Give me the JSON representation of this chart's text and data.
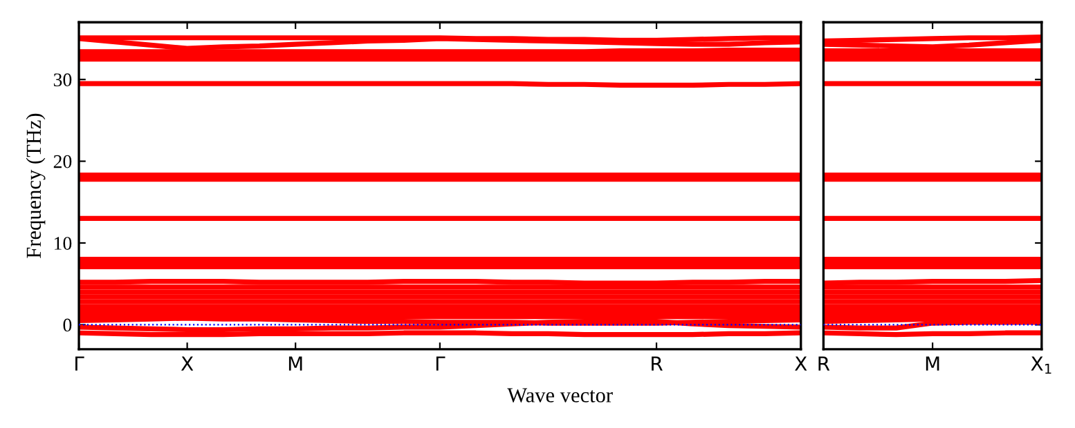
{
  "chart_data": [
    {
      "type": "line",
      "xlabel": "Wave vector",
      "ylabel": "Frequency (THz)",
      "legend": false,
      "grid": false,
      "marker": "none",
      "line_style": "solid",
      "categories": [
        "Γ",
        null,
        null,
        "X",
        null,
        null,
        "M",
        null,
        null,
        null,
        "Γ",
        null,
        null,
        null,
        null,
        null,
        "R",
        null,
        null,
        null,
        "X"
      ],
      "ylim": [
        -3,
        37
      ],
      "yticks": [
        0,
        10,
        20,
        30
      ],
      "ref_lines": [
        {
          "axis": "y",
          "value": 0,
          "color": "#0000ff",
          "line_style": "dotted"
        }
      ],
      "series": [
        {
          "color": "#ff0000",
          "values": [
            35.1,
            35.1,
            35.1,
            35.1,
            35.1,
            35.1,
            35.1,
            35.1,
            35.1,
            35.1,
            35.1,
            35.0,
            35.0,
            34.9,
            34.9,
            34.8,
            34.8,
            34.9,
            35.0,
            35.1,
            35.1
          ]
        },
        {
          "color": "#ff0000",
          "values": [
            35.0,
            34.6,
            34.2,
            33.8,
            34.0,
            34.1,
            34.3,
            34.5,
            34.7,
            34.8,
            35.0,
            34.9,
            34.8,
            34.7,
            34.6,
            34.5,
            34.4,
            34.3,
            34.3,
            34.5,
            34.6
          ]
        },
        {
          "color": "#ff0000",
          "values": [
            33.4,
            33.4,
            33.4,
            33.4,
            33.4,
            33.4,
            33.4,
            33.4,
            33.4,
            33.4,
            33.4,
            33.4,
            33.4,
            33.4,
            33.4,
            33.5,
            33.5,
            33.5,
            33.6,
            33.6,
            33.6
          ]
        },
        {
          "color": "#ff0000",
          "values": [
            33.0,
            33.0,
            33.0,
            33.0,
            33.0,
            33.0,
            33.0,
            33.0,
            33.0,
            33.0,
            33.0,
            33.0,
            33.0,
            33.0,
            33.0,
            33.0,
            33.0,
            33.0,
            33.0,
            33.0,
            33.0
          ]
        },
        {
          "color": "#ff0000",
          "values": [
            32.5,
            32.5,
            32.5,
            32.5,
            32.5,
            32.5,
            32.5,
            32.5,
            32.5,
            32.5,
            32.5,
            32.5,
            32.5,
            32.5,
            32.5,
            32.5,
            32.5,
            32.5,
            32.5,
            32.5,
            32.5
          ]
        },
        {
          "color": "#ff0000",
          "values": [
            29.5,
            29.5,
            29.5,
            29.5,
            29.5,
            29.5,
            29.5,
            29.5,
            29.5,
            29.5,
            29.5,
            29.5,
            29.5,
            29.4,
            29.4,
            29.3,
            29.3,
            29.3,
            29.4,
            29.4,
            29.5
          ]
        },
        {
          "color": "#ff0000",
          "values": [
            18.3,
            18.3,
            18.3,
            18.3,
            18.3,
            18.3,
            18.3,
            18.3,
            18.3,
            18.3,
            18.3,
            18.3,
            18.3,
            18.3,
            18.3,
            18.3,
            18.3,
            18.3,
            18.3,
            18.3,
            18.3
          ]
        },
        {
          "color": "#ff0000",
          "values": [
            17.8,
            17.8,
            17.8,
            17.8,
            17.8,
            17.8,
            17.8,
            17.8,
            17.8,
            17.8,
            17.8,
            17.8,
            17.8,
            17.8,
            17.8,
            17.8,
            17.8,
            17.8,
            17.8,
            17.8,
            17.8
          ]
        },
        {
          "color": "#ff0000",
          "values": [
            13.0,
            13.0,
            13.0,
            13.0,
            13.0,
            13.0,
            13.0,
            13.0,
            13.0,
            13.0,
            13.0,
            13.0,
            13.0,
            13.0,
            13.0,
            13.0,
            13.0,
            13.0,
            13.0,
            13.0,
            13.0
          ]
        },
        {
          "color": "#ff0000",
          "values": [
            8.0,
            8.0,
            8.0,
            8.0,
            8.0,
            8.0,
            8.0,
            8.0,
            8.0,
            8.0,
            8.0,
            8.0,
            8.0,
            8.0,
            8.0,
            8.0,
            8.0,
            8.0,
            8.0,
            8.0,
            8.0
          ]
        },
        {
          "color": "#ff0000",
          "values": [
            7.6,
            7.6,
            7.6,
            7.6,
            7.6,
            7.6,
            7.6,
            7.6,
            7.6,
            7.6,
            7.6,
            7.6,
            7.6,
            7.6,
            7.6,
            7.6,
            7.6,
            7.6,
            7.6,
            7.6,
            7.6
          ]
        },
        {
          "color": "#ff0000",
          "values": [
            7.1,
            7.1,
            7.1,
            7.1,
            7.1,
            7.1,
            7.1,
            7.1,
            7.1,
            7.1,
            7.1,
            7.1,
            7.1,
            7.1,
            7.1,
            7.1,
            7.1,
            7.1,
            7.1,
            7.1,
            7.1
          ]
        },
        {
          "color": "#ff0000",
          "values": [
            5.2,
            5.2,
            5.3,
            5.3,
            5.3,
            5.2,
            5.2,
            5.2,
            5.2,
            5.3,
            5.3,
            5.3,
            5.2,
            5.2,
            5.1,
            5.1,
            5.1,
            5.2,
            5.2,
            5.3,
            5.3
          ]
        },
        {
          "color": "#ff0000",
          "values": [
            4.6,
            4.6,
            4.6,
            4.6,
            4.6,
            4.6,
            4.6,
            4.6,
            4.6,
            4.6,
            4.6,
            4.6,
            4.6,
            4.6,
            4.6,
            4.6,
            4.6,
            4.6,
            4.6,
            4.6,
            4.6
          ]
        },
        {
          "color": "#ff0000",
          "values": [
            4.0,
            4.0,
            4.0,
            4.0,
            4.0,
            4.0,
            4.0,
            4.0,
            4.0,
            4.0,
            4.0,
            4.0,
            4.0,
            4.0,
            4.0,
            4.0,
            4.0,
            4.0,
            4.0,
            4.0,
            4.0
          ]
        },
        {
          "color": "#ff0000",
          "values": [
            3.4,
            3.4,
            3.4,
            3.4,
            3.4,
            3.4,
            3.4,
            3.4,
            3.4,
            3.4,
            3.4,
            3.4,
            3.4,
            3.4,
            3.4,
            3.4,
            3.4,
            3.4,
            3.4,
            3.4,
            3.4
          ]
        },
        {
          "color": "#ff0000",
          "values": [
            2.8,
            2.8,
            2.8,
            2.8,
            2.8,
            2.8,
            2.8,
            2.8,
            2.8,
            2.8,
            2.8,
            2.8,
            2.8,
            2.8,
            2.8,
            2.8,
            2.8,
            2.8,
            2.8,
            2.8,
            2.8
          ]
        },
        {
          "color": "#ff0000",
          "values": [
            2.2,
            2.2,
            2.2,
            2.2,
            2.2,
            2.2,
            2.2,
            2.2,
            2.2,
            2.2,
            2.2,
            2.2,
            2.2,
            2.2,
            2.2,
            2.2,
            2.2,
            2.2,
            2.2,
            2.2,
            2.2
          ]
        },
        {
          "color": "#ff0000",
          "values": [
            1.6,
            1.6,
            1.6,
            1.6,
            1.6,
            1.6,
            1.6,
            1.6,
            1.6,
            1.6,
            1.6,
            1.6,
            1.6,
            1.6,
            1.6,
            1.6,
            1.6,
            1.6,
            1.6,
            1.6,
            1.6
          ]
        },
        {
          "color": "#ff0000",
          "values": [
            1.0,
            1.0,
            1.0,
            1.0,
            1.0,
            1.0,
            1.0,
            1.0,
            1.0,
            1.0,
            1.0,
            1.0,
            1.0,
            1.0,
            1.0,
            1.0,
            1.0,
            1.0,
            1.0,
            1.0,
            1.0
          ]
        },
        {
          "color": "#ff0000",
          "values": [
            0.5,
            0.6,
            0.7,
            0.8,
            0.7,
            0.7,
            0.6,
            0.5,
            0.4,
            0.4,
            0.3,
            0.3,
            0.3,
            0.2,
            0.2,
            0.2,
            0.2,
            0.3,
            0.4,
            0.5,
            0.6
          ]
        },
        {
          "color": "#ff0000",
          "values": [
            -0.3,
            -0.4,
            -0.5,
            -0.6,
            -0.6,
            -0.5,
            -0.5,
            -0.4,
            -0.4,
            -0.3,
            -0.3,
            -0.1,
            0.1,
            0.3,
            0.4,
            0.4,
            0.4,
            0.1,
            -0.1,
            -0.2,
            -0.3
          ]
        },
        {
          "color": "#ff0000",
          "values": [
            -1.0,
            -1.1,
            -1.2,
            -1.2,
            -1.2,
            -1.1,
            -1.1,
            -1.1,
            -1.1,
            -1.0,
            -1.0,
            -1.0,
            -1.1,
            -1.1,
            -1.2,
            -1.2,
            -1.2,
            -1.2,
            -1.1,
            -1.1,
            -1.0
          ]
        }
      ]
    },
    {
      "type": "line",
      "legend": false,
      "grid": false,
      "marker": "none",
      "line_style": "solid",
      "tick_labels": "x",
      "categories": [
        "R",
        null,
        null,
        "M",
        null,
        null,
        "X$_{1}$"
      ],
      "ylim": [
        -3,
        37
      ],
      "yticks": [
        0,
        10,
        20,
        30
      ],
      "ref_lines": [
        {
          "axis": "y",
          "value": 0,
          "color": "#0000ff",
          "line_style": "dotted"
        }
      ],
      "series": [
        {
          "color": "#ff0000",
          "values": [
            34.7,
            34.8,
            34.9,
            35.0,
            35.1,
            35.1,
            35.2
          ]
        },
        {
          "color": "#ff0000",
          "values": [
            34.3,
            34.2,
            34.1,
            34.0,
            34.2,
            34.5,
            34.8
          ]
        },
        {
          "color": "#ff0000",
          "values": [
            33.5,
            33.5,
            33.5,
            33.5,
            33.5,
            33.5,
            33.5
          ]
        },
        {
          "color": "#ff0000",
          "values": [
            33.0,
            33.0,
            33.0,
            33.0,
            33.0,
            33.0,
            33.0
          ]
        },
        {
          "color": "#ff0000",
          "values": [
            32.5,
            32.5,
            32.5,
            32.5,
            32.5,
            32.5,
            32.5
          ]
        },
        {
          "color": "#ff0000",
          "values": [
            29.5,
            29.5,
            29.5,
            29.5,
            29.5,
            29.5,
            29.5
          ]
        },
        {
          "color": "#ff0000",
          "values": [
            18.3,
            18.3,
            18.3,
            18.3,
            18.3,
            18.3,
            18.3
          ]
        },
        {
          "color": "#ff0000",
          "values": [
            17.8,
            17.8,
            17.8,
            17.8,
            17.8,
            17.8,
            17.8
          ]
        },
        {
          "color": "#ff0000",
          "values": [
            13.0,
            13.0,
            13.0,
            13.0,
            13.0,
            13.0,
            13.0
          ]
        },
        {
          "color": "#ff0000",
          "values": [
            8.0,
            8.0,
            8.0,
            8.0,
            8.0,
            8.0,
            8.0
          ]
        },
        {
          "color": "#ff0000",
          "values": [
            7.6,
            7.6,
            7.6,
            7.6,
            7.6,
            7.6,
            7.6
          ]
        },
        {
          "color": "#ff0000",
          "values": [
            7.1,
            7.1,
            7.1,
            7.1,
            7.1,
            7.1,
            7.1
          ]
        },
        {
          "color": "#ff0000",
          "values": [
            5.1,
            5.2,
            5.2,
            5.3,
            5.3,
            5.3,
            5.4
          ]
        },
        {
          "color": "#ff0000",
          "values": [
            4.6,
            4.6,
            4.6,
            4.6,
            4.6,
            4.6,
            4.6
          ]
        },
        {
          "color": "#ff0000",
          "values": [
            4.0,
            4.0,
            4.0,
            4.0,
            4.0,
            4.0,
            4.0
          ]
        },
        {
          "color": "#ff0000",
          "values": [
            3.4,
            3.4,
            3.4,
            3.4,
            3.4,
            3.4,
            3.4
          ]
        },
        {
          "color": "#ff0000",
          "values": [
            2.8,
            2.8,
            2.8,
            2.8,
            2.8,
            2.8,
            2.8
          ]
        },
        {
          "color": "#ff0000",
          "values": [
            2.2,
            2.2,
            2.2,
            2.2,
            2.2,
            2.2,
            2.2
          ]
        },
        {
          "color": "#ff0000",
          "values": [
            1.6,
            1.6,
            1.6,
            1.6,
            1.6,
            1.6,
            1.6
          ]
        },
        {
          "color": "#ff0000",
          "values": [
            1.0,
            1.0,
            1.0,
            1.0,
            1.0,
            1.0,
            1.0
          ]
        },
        {
          "color": "#ff0000",
          "values": [
            0.4,
            0.5,
            0.6,
            0.7,
            0.7,
            0.6,
            0.6
          ]
        },
        {
          "color": "#ff0000",
          "values": [
            -0.3,
            -0.4,
            -0.4,
            0.2,
            0.3,
            0.3,
            0.3
          ]
        },
        {
          "color": "#ff0000",
          "values": [
            -1.0,
            -1.1,
            -1.2,
            -1.1,
            -1.1,
            -1.0,
            -1.0
          ]
        }
      ]
    }
  ]
}
